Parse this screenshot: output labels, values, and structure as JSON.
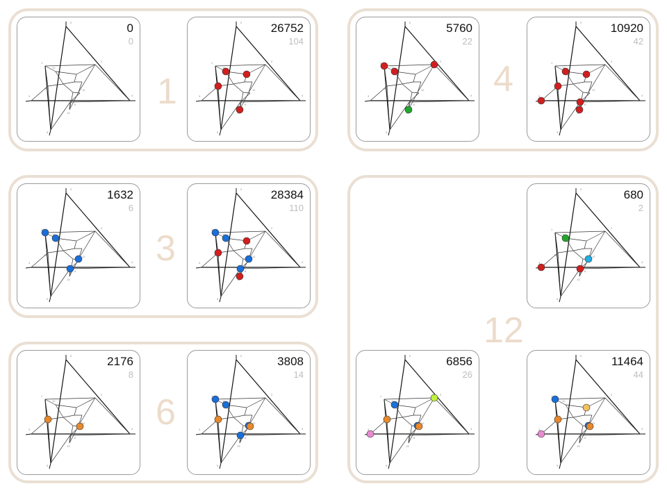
{
  "colors": {
    "group_border": "#eadfd3",
    "group_label": "#ecdccb",
    "red": "#d11f1f",
    "blue": "#1a6fd9",
    "green": "#1fa82a",
    "orange": "#e8892b",
    "cyan": "#22aee0",
    "lime": "#bff23a",
    "pink": "#e78bd2",
    "lightorange": "#f2c15f"
  },
  "groups": [
    {
      "label": "1"
    },
    {
      "label": "4"
    },
    {
      "label": "3"
    },
    {
      "label": "12"
    },
    {
      "label": "6"
    }
  ],
  "cards": [
    {
      "count": "0",
      "sub": "0",
      "dots": []
    },
    {
      "count": "26752",
      "sub": "104",
      "dots": [
        [
          "red",
          10
        ],
        [
          "red",
          11
        ],
        [
          "red",
          14
        ],
        [
          "red",
          13
        ]
      ]
    },
    {
      "count": "5760",
      "sub": "22",
      "dots": [
        [
          "red",
          1
        ],
        [
          "red",
          2
        ],
        [
          "red",
          10
        ],
        [
          "green",
          13
        ]
      ]
    },
    {
      "count": "10920",
      "sub": "42",
      "dots": [
        [
          "red",
          10
        ],
        [
          "red",
          14
        ],
        [
          "red",
          11
        ],
        [
          "red",
          13
        ],
        [
          "red",
          3
        ],
        [
          "red",
          6
        ]
      ]
    },
    {
      "count": "1632",
      "sub": "6",
      "dots": [
        [
          "blue",
          1
        ],
        [
          "blue",
          10
        ],
        [
          "blue",
          12
        ],
        [
          "blue",
          6
        ]
      ]
    },
    {
      "count": "28384",
      "sub": "110",
      "dots": [
        [
          "blue",
          1
        ],
        [
          "blue",
          10
        ],
        [
          "red",
          11
        ],
        [
          "red",
          14
        ],
        [
          "red",
          13
        ],
        [
          "blue",
          12
        ],
        [
          "blue",
          6
        ]
      ]
    },
    {
      "count": "680",
      "sub": "2",
      "dots": [
        [
          "green",
          10
        ],
        [
          "red",
          3
        ],
        [
          "cyan",
          12
        ],
        [
          "red",
          6
        ]
      ]
    },
    {
      "count": "2176",
      "sub": "8",
      "dots": [
        [
          "orange",
          14
        ],
        [
          "orange",
          15
        ]
      ]
    },
    {
      "count": "3808",
      "sub": "14",
      "dots": [
        [
          "blue",
          1
        ],
        [
          "orange",
          14
        ],
        [
          "blue",
          10
        ],
        [
          "blue",
          12
        ],
        [
          "orange",
          15
        ],
        [
          "blue",
          6
        ]
      ]
    },
    {
      "count": "6856",
      "sub": "26",
      "dots": [
        [
          "lime",
          2
        ],
        [
          "blue",
          10
        ],
        [
          "orange",
          14
        ],
        [
          "blue",
          12
        ],
        [
          "orange",
          15
        ],
        [
          "pink",
          3
        ]
      ]
    },
    {
      "count": "11464",
      "sub": "44",
      "dots": [
        [
          "blue",
          1
        ],
        [
          "orange",
          14
        ],
        [
          "lightorange",
          11
        ],
        [
          "blue",
          12
        ],
        [
          "orange",
          15
        ],
        [
          "pink",
          3
        ]
      ]
    }
  ]
}
